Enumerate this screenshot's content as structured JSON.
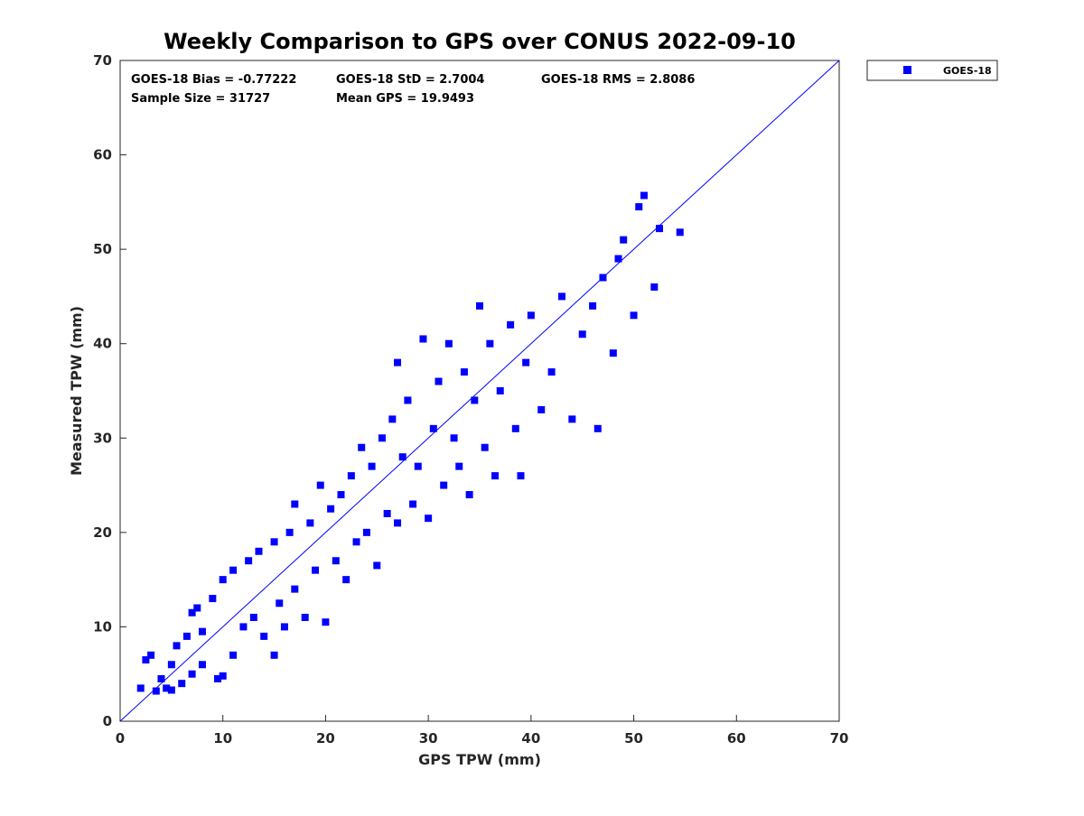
{
  "chart_data": {
    "type": "scatter",
    "title": "Weekly Comparison to GPS over CONUS 2022-09-10",
    "xlabel": "GPS TPW (mm)",
    "ylabel": "Measured TPW (mm)",
    "xlim": [
      0,
      70
    ],
    "ylim": [
      0,
      70
    ],
    "xticks": [
      "0",
      "10",
      "20",
      "30",
      "40",
      "50",
      "60",
      "70"
    ],
    "yticks": [
      "0",
      "10",
      "20",
      "30",
      "40",
      "50",
      "60",
      "70"
    ],
    "grid": false,
    "legend_position": "outside-top-right",
    "marker_color": "#0000ff",
    "reference_line": {
      "label": "1:1 line",
      "from": [
        0,
        0
      ],
      "to": [
        70,
        70
      ],
      "color": "#0000ff"
    },
    "stats": {
      "bias": "GOES-18 Bias = -0.77222",
      "std": "GOES-18 StD = 2.7004",
      "rms": "GOES-18 RMS = 2.8086",
      "sample_size": "Sample Size = 31727",
      "mean_gps": "Mean GPS = 19.9493"
    },
    "series": [
      {
        "name": "GOES-18",
        "color": "#0000ff",
        "marker": "square",
        "points": [
          [
            2,
            3.5
          ],
          [
            2.5,
            6.5
          ],
          [
            3,
            7
          ],
          [
            3.5,
            3.2
          ],
          [
            4,
            4.5
          ],
          [
            4.5,
            3.5
          ],
          [
            5,
            6
          ],
          [
            5,
            3.3
          ],
          [
            5.5,
            8
          ],
          [
            6,
            4
          ],
          [
            6.5,
            9
          ],
          [
            7,
            5
          ],
          [
            7,
            11.5
          ],
          [
            7.5,
            12
          ],
          [
            8,
            6
          ],
          [
            8,
            9.5
          ],
          [
            9,
            13
          ],
          [
            9.5,
            4.5
          ],
          [
            10,
            4.8
          ],
          [
            10,
            15
          ],
          [
            11,
            16
          ],
          [
            11,
            7
          ],
          [
            12,
            10
          ],
          [
            12.5,
            17
          ],
          [
            13,
            11
          ],
          [
            13.5,
            18
          ],
          [
            14,
            9
          ],
          [
            15,
            19
          ],
          [
            15.5,
            12.5
          ],
          [
            16,
            10
          ],
          [
            16.5,
            20
          ],
          [
            17,
            14
          ],
          [
            17,
            23
          ],
          [
            18,
            11
          ],
          [
            18.5,
            21
          ],
          [
            19,
            16
          ],
          [
            19.5,
            25
          ],
          [
            20,
            10.5
          ],
          [
            20.5,
            22.5
          ],
          [
            21,
            17
          ],
          [
            21.5,
            24
          ],
          [
            22,
            15
          ],
          [
            22.5,
            26
          ],
          [
            23,
            19
          ],
          [
            23.5,
            29
          ],
          [
            24,
            20
          ],
          [
            24.5,
            27
          ],
          [
            25,
            16.5
          ],
          [
            25.5,
            30
          ],
          [
            26,
            22
          ],
          [
            26.5,
            32
          ],
          [
            27,
            21
          ],
          [
            27.5,
            28
          ],
          [
            28,
            34
          ],
          [
            28.5,
            23
          ],
          [
            29,
            27
          ],
          [
            29.5,
            40.5
          ],
          [
            30,
            21.5
          ],
          [
            30.5,
            31
          ],
          [
            31,
            36
          ],
          [
            31.5,
            25
          ],
          [
            32,
            40
          ],
          [
            32.5,
            30
          ],
          [
            33,
            27
          ],
          [
            33.5,
            37
          ],
          [
            34,
            24
          ],
          [
            34.5,
            34
          ],
          [
            35,
            44
          ],
          [
            35.5,
            29
          ],
          [
            36,
            40
          ],
          [
            36.5,
            26
          ],
          [
            37,
            35
          ],
          [
            38,
            42
          ],
          [
            38.5,
            31
          ],
          [
            39,
            26
          ],
          [
            39.5,
            38
          ],
          [
            40,
            43
          ],
          [
            41,
            33
          ],
          [
            42,
            37
          ],
          [
            43,
            45
          ],
          [
            44,
            32
          ],
          [
            45,
            41
          ],
          [
            46,
            44
          ],
          [
            46.5,
            31
          ],
          [
            47,
            47
          ],
          [
            48,
            39
          ],
          [
            48.5,
            49
          ],
          [
            49,
            51
          ],
          [
            50,
            43
          ],
          [
            50.5,
            54.5
          ],
          [
            51,
            55.7
          ],
          [
            52,
            46
          ],
          [
            52.5,
            52.2
          ],
          [
            54.5,
            51.8
          ],
          [
            27,
            38
          ],
          [
            15,
            7
          ]
        ]
      }
    ]
  }
}
